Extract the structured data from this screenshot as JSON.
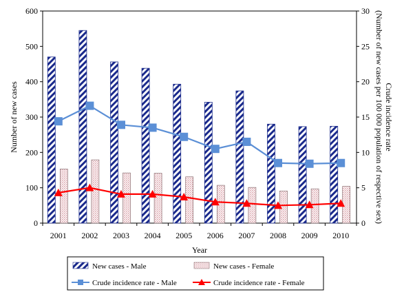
{
  "chart_data": {
    "type": "bar",
    "categories": [
      "2001",
      "2002",
      "2003",
      "2004",
      "2005",
      "2006",
      "2007",
      "2008",
      "2009",
      "2010"
    ],
    "xlabel": "Year",
    "ylabel": "Number of new cases",
    "ylabel_right": "Crude incidence rate (Number of new cases per 100 000 population of respective sex)",
    "ylim": [
      0,
      600
    ],
    "ylim_right": [
      0,
      30
    ],
    "yticks": [
      "0",
      "100",
      "200",
      "300",
      "400",
      "500",
      "600"
    ],
    "yticks_right": [
      "0",
      "5",
      "10",
      "15",
      "20",
      "25",
      "30"
    ],
    "grid": false,
    "legend_position": "bottom",
    "series": [
      {
        "name": "New cases - Male",
        "kind": "bar",
        "axis": "left",
        "pattern": "diagonal-hatch",
        "color": "#1a2a8c",
        "values": [
          470,
          545,
          456,
          438,
          393,
          342,
          374,
          280,
          273,
          274
        ]
      },
      {
        "name": "New cases - Female",
        "kind": "bar",
        "axis": "left",
        "pattern": "dotted-pink",
        "color": "#d9a0a8",
        "values": [
          153,
          179,
          142,
          141,
          131,
          107,
          101,
          91,
          97,
          104
        ]
      },
      {
        "name": "Crude incidence rate - Male",
        "kind": "line",
        "axis": "right",
        "marker": "square",
        "color": "#5b8fd6",
        "values": [
          14.4,
          16.6,
          13.9,
          13.5,
          12.2,
          10.5,
          11.5,
          8.5,
          8.4,
          8.5
        ]
      },
      {
        "name": "Crude incidence rate - Female",
        "kind": "line",
        "axis": "right",
        "marker": "triangle",
        "color": "#ff0000",
        "values": [
          4.3,
          5.0,
          4.1,
          4.1,
          3.7,
          3.0,
          2.8,
          2.5,
          2.6,
          2.8
        ]
      }
    ]
  }
}
